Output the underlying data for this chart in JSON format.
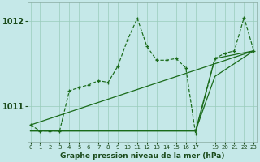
{
  "title": "Graphe pression niveau de la mer (hPa)",
  "bg_color": "#c5e8e8",
  "grid_color": "#99ccbb",
  "line_color": "#1a6b1a",
  "ytick_vals": [
    1011,
    1012
  ],
  "ylim": [
    1010.58,
    1012.22
  ],
  "xlim": [
    -0.3,
    23.3
  ],
  "xtick_vals": [
    0,
    1,
    2,
    3,
    4,
    5,
    6,
    7,
    8,
    9,
    10,
    11,
    12,
    13,
    14,
    15,
    16,
    17,
    19,
    20,
    21,
    22,
    23
  ],
  "dotted_x": [
    0,
    1,
    2,
    3,
    4,
    5,
    6,
    7,
    8,
    9,
    10,
    11,
    12,
    13,
    14,
    15,
    16,
    17,
    19,
    20,
    21,
    22,
    23
  ],
  "dotted_y": [
    1010.78,
    1010.71,
    1010.71,
    1010.71,
    1011.18,
    1011.22,
    1011.25,
    1011.3,
    1011.28,
    1011.47,
    1011.78,
    1012.03,
    1011.7,
    1011.54,
    1011.54,
    1011.56,
    1011.45,
    1010.68,
    1011.56,
    1011.62,
    1011.65,
    1012.04,
    1011.65
  ],
  "line1_x": [
    0,
    23
  ],
  "line1_y": [
    1010.78,
    1011.65
  ],
  "line2_x": [
    0,
    17,
    19,
    23
  ],
  "line2_y": [
    1010.71,
    1010.71,
    1011.56,
    1011.65
  ],
  "line3_x": [
    0,
    17,
    19,
    23
  ],
  "line3_y": [
    1010.71,
    1010.71,
    1011.35,
    1011.65
  ]
}
